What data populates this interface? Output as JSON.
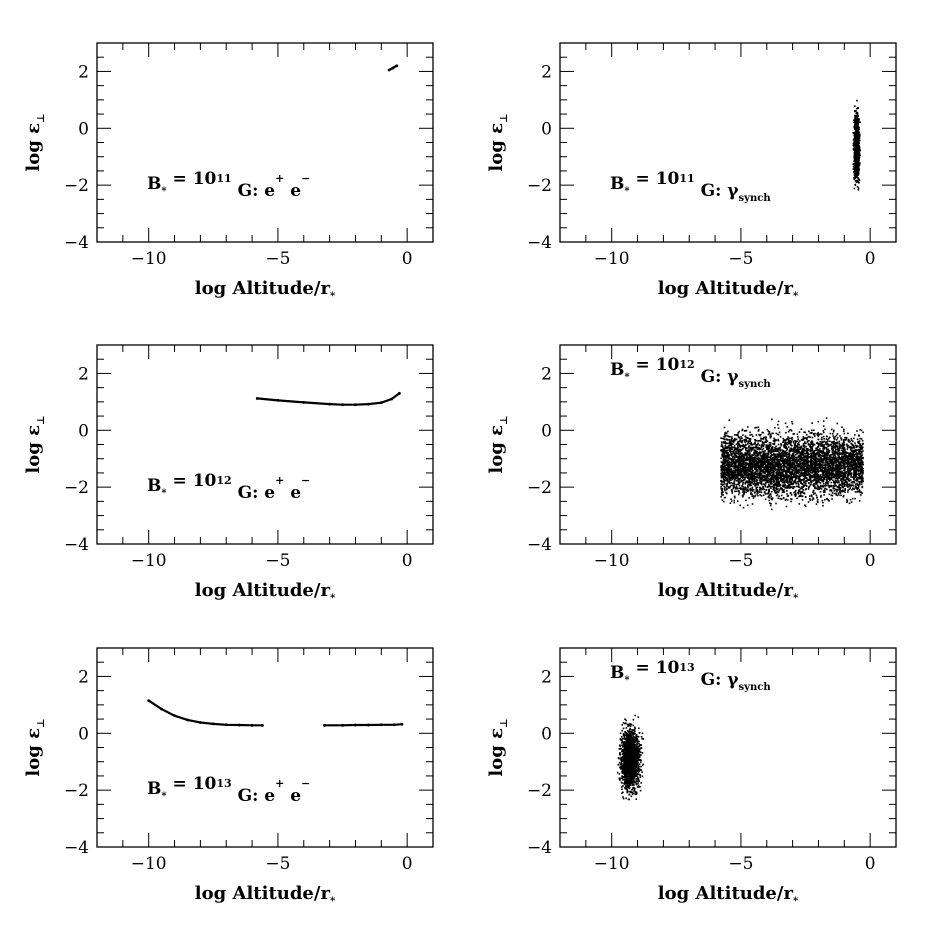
{
  "chart_data": [
    {
      "id": "p1",
      "type": "scatter",
      "xlabel_main": "log Altitude/r",
      "xlabel_sub": "*",
      "ylabel_main": "log ε",
      "ylabel_sub": "⊥",
      "xlim": [
        -12,
        1
      ],
      "ylim": [
        -4,
        3
      ],
      "xticks": [
        -10,
        -5,
        0
      ],
      "yticks": [
        -4,
        -2,
        0,
        2
      ],
      "grid": false,
      "annotation": {
        "prefix": "B",
        "star": "*",
        "eq": " = 10",
        "exp": "11",
        "mid": " G: e",
        "sup1": "+",
        "mid2": " e",
        "sup2": "−",
        "subtext": ""
      },
      "annotation_position": "lower-middle",
      "style": "curve",
      "series": [
        {
          "x": [
            -0.7,
            -0.55,
            -0.4
          ],
          "y": [
            2.05,
            2.12,
            2.2
          ]
        }
      ]
    },
    {
      "id": "p2",
      "type": "scatter",
      "xlabel_main": "log Altitude/r",
      "xlabel_sub": "*",
      "ylabel_main": "log ε",
      "ylabel_sub": "⊥",
      "xlim": [
        -12,
        1
      ],
      "ylim": [
        -4,
        3
      ],
      "xticks": [
        -10,
        -5,
        0
      ],
      "yticks": [
        -4,
        -2,
        0,
        2
      ],
      "grid": false,
      "annotation": {
        "prefix": "B",
        "star": "*",
        "eq": " = 10",
        "exp": "11",
        "mid": " G: γ",
        "sup1": "",
        "mid2": "",
        "sup2": "",
        "subtext": "synch"
      },
      "annotation_position": "lower-middle",
      "style": "cloud",
      "clouds": [
        {
          "xmin": -0.75,
          "xmax": -0.35,
          "ymin": -2.6,
          "ymax": 1.3,
          "count": 900
        }
      ]
    },
    {
      "id": "p3",
      "type": "scatter",
      "xlabel_main": "log Altitude/r",
      "xlabel_sub": "*",
      "ylabel_main": "log ε",
      "ylabel_sub": "⊥",
      "xlim": [
        -12,
        1
      ],
      "ylim": [
        -4,
        3
      ],
      "xticks": [
        -10,
        -5,
        0
      ],
      "yticks": [
        -4,
        -2,
        0,
        2
      ],
      "grid": false,
      "annotation": {
        "prefix": "B",
        "star": "*",
        "eq": " = 10",
        "exp": "12",
        "mid": " G: e",
        "sup1": "+",
        "mid2": " e",
        "sup2": "−",
        "subtext": ""
      },
      "annotation_position": "lower-middle",
      "style": "curve",
      "series": [
        {
          "x": [
            -5.8,
            -5.0,
            -4.0,
            -3.0,
            -2.5,
            -2.0,
            -1.5,
            -1.0,
            -0.6,
            -0.3
          ],
          "y": [
            1.12,
            1.05,
            0.98,
            0.92,
            0.9,
            0.9,
            0.92,
            0.97,
            1.1,
            1.3
          ]
        }
      ]
    },
    {
      "id": "p4",
      "type": "scatter",
      "xlabel_main": "log Altitude/r",
      "xlabel_sub": "*",
      "ylabel_main": "log ε",
      "ylabel_sub": "⊥",
      "xlim": [
        -12,
        1
      ],
      "ylim": [
        -4,
        3
      ],
      "xticks": [
        -10,
        -5,
        0
      ],
      "yticks": [
        -4,
        -2,
        0,
        2
      ],
      "grid": false,
      "annotation": {
        "prefix": "B",
        "star": "*",
        "eq": " = 10",
        "exp": "12",
        "mid": " G: γ",
        "sup1": "",
        "mid2": "",
        "sup2": "",
        "subtext": "synch"
      },
      "annotation_position": "top-middle",
      "style": "cloud",
      "clouds": [
        {
          "xmin": -5.8,
          "xmax": -0.3,
          "ymin": -2.9,
          "ymax": 0.5,
          "count": 5200
        }
      ]
    },
    {
      "id": "p5",
      "type": "scatter",
      "xlabel_main": "log Altitude/r",
      "xlabel_sub": "*",
      "ylabel_main": "log ε",
      "ylabel_sub": "⊥",
      "xlim": [
        -12,
        1
      ],
      "ylim": [
        -4,
        3
      ],
      "xticks": [
        -10,
        -5,
        0
      ],
      "yticks": [
        -4,
        -2,
        0,
        2
      ],
      "grid": false,
      "annotation": {
        "prefix": "B",
        "star": "*",
        "eq": " = 10",
        "exp": "13",
        "mid": " G: e",
        "sup1": "+",
        "mid2": " e",
        "sup2": "−",
        "subtext": ""
      },
      "annotation_position": "lower-middle",
      "style": "curve",
      "series": [
        {
          "x": [
            -10.0,
            -9.5,
            -9.0,
            -8.5,
            -8.0,
            -7.5,
            -7.0,
            -6.5,
            -6.0,
            -5.6
          ],
          "y": [
            1.15,
            0.85,
            0.62,
            0.47,
            0.38,
            0.33,
            0.3,
            0.29,
            0.28,
            0.28
          ]
        },
        {
          "x": [
            -3.2,
            -2.5,
            -2.0,
            -1.5,
            -1.0,
            -0.5,
            -0.2
          ],
          "y": [
            0.28,
            0.28,
            0.29,
            0.29,
            0.3,
            0.3,
            0.32
          ]
        }
      ]
    },
    {
      "id": "p6",
      "type": "scatter",
      "xlabel_main": "log Altitude/r",
      "xlabel_sub": "*",
      "ylabel_main": "log ε",
      "ylabel_sub": "⊥",
      "xlim": [
        -12,
        1
      ],
      "ylim": [
        -4,
        3
      ],
      "xticks": [
        -10,
        -5,
        0
      ],
      "yticks": [
        -4,
        -2,
        0,
        2
      ],
      "grid": false,
      "annotation": {
        "prefix": "B",
        "star": "*",
        "eq": " = 10",
        "exp": "13",
        "mid": " G: γ",
        "sup1": "",
        "mid2": "",
        "sup2": "",
        "subtext": "synch"
      },
      "annotation_position": "top-middle",
      "style": "cloud",
      "clouds": [
        {
          "xmin": -10.0,
          "xmax": -8.6,
          "ymin": -2.7,
          "ymax": 0.9,
          "count": 1600
        }
      ]
    }
  ]
}
